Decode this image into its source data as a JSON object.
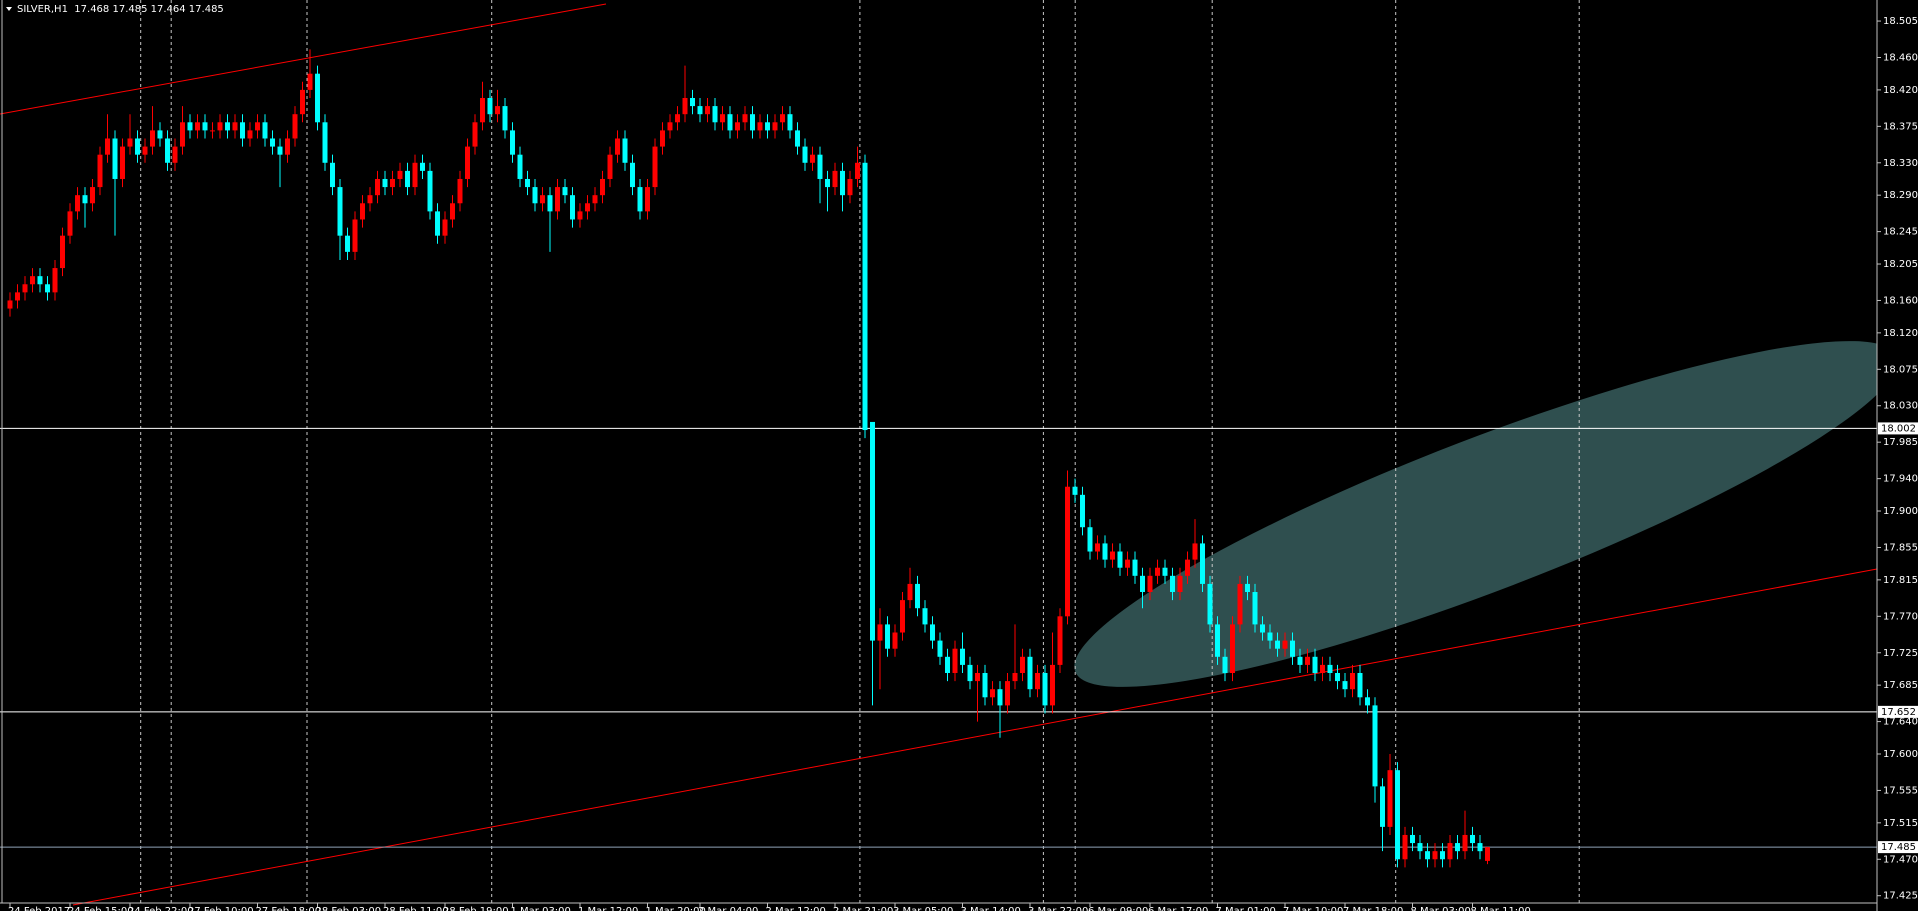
{
  "chart_data": {
    "type": "candlestick",
    "title": "SILVER,H1  17.468 17.485 17.464 17.485",
    "up_color": "#ff0000",
    "down_color": "#00ffff",
    "ylim": [
      17.416,
      18.531
    ],
    "yticks": [
      18.505,
      {
        "value": 18.46,
        "label": "18.460"
      },
      {
        "value": 18.42,
        "label": "18.420"
      },
      18.375,
      {
        "value": 18.33,
        "label": "18.330"
      },
      {
        "value": 18.29,
        "label": "18.290"
      },
      18.245,
      18.205,
      {
        "value": 18.16,
        "label": "18.160"
      },
      {
        "value": 18.12,
        "label": "18.120"
      },
      18.075,
      {
        "value": 18.03,
        "label": "18.030"
      },
      17.985,
      {
        "value": 17.94,
        "label": "17.940"
      },
      {
        "value": 17.9,
        "label": "17.900"
      },
      17.855,
      17.815,
      {
        "value": 17.77,
        "label": "17.770"
      },
      17.725,
      17.685,
      {
        "value": 17.64,
        "label": "17.640"
      },
      {
        "value": 17.6,
        "label": "17.600"
      },
      17.555,
      17.515,
      {
        "value": 17.47,
        "label": "17.470"
      },
      17.425
    ],
    "xticks": [
      {
        "value": 0,
        "label": "24 Feb 2017"
      },
      {
        "value": 8,
        "label": "24 Feb 15:00"
      },
      {
        "value": 16,
        "label": "24 Feb 22:00"
      },
      {
        "value": 24,
        "label": "27 Feb 10:00"
      },
      {
        "value": 33,
        "label": "27 Feb 18:00"
      },
      {
        "value": 41,
        "label": "28 Feb 03:00"
      },
      {
        "value": 50,
        "label": "28 Feb 11:00"
      },
      {
        "value": 58,
        "label": "28 Feb 19:00"
      },
      {
        "value": 67,
        "label": "1 Mar 03:00"
      },
      {
        "value": 76,
        "label": "1 Mar 12:00"
      },
      {
        "value": 85,
        "label": "1 Mar 20:00"
      },
      {
        "value": 92,
        "label": "2 Mar 04:00"
      },
      {
        "value": 101,
        "label": "2 Mar 12:00"
      },
      {
        "value": 110,
        "label": "2 Mar 21:00"
      },
      {
        "value": 118,
        "label": "3 Mar 05:00"
      },
      {
        "value": 127,
        "label": "3 Mar 14:00"
      },
      {
        "value": 136,
        "label": "3 Mar 22:00"
      },
      {
        "value": 144,
        "label": "6 Mar 09:00"
      },
      {
        "value": 152,
        "label": "6 Mar 17:00"
      },
      {
        "value": 161,
        "label": "7 Mar 01:00"
      },
      {
        "value": 170,
        "label": "7 Mar 10:00"
      },
      {
        "value": 178,
        "label": "7 Mar 18:00"
      },
      {
        "value": 187,
        "label": "8 Mar 03:00"
      },
      {
        "value": 195,
        "label": "8 Mar 11:00"
      }
    ],
    "hlines": [
      {
        "value": 18.002,
        "color": "#ffffff"
      },
      {
        "value": 17.652,
        "color": "#ffffff"
      },
      {
        "value": 17.485,
        "color": "#8fa3b8"
      }
    ],
    "ohlc": [
      [
        18.15,
        18.17,
        18.14,
        18.16
      ],
      [
        18.16,
        18.18,
        18.15,
        18.17
      ],
      [
        18.17,
        18.19,
        18.16,
        18.18
      ],
      [
        18.18,
        18.2,
        18.17,
        18.19
      ],
      [
        18.19,
        18.2,
        18.17,
        18.18
      ],
      [
        18.18,
        18.19,
        18.16,
        18.17
      ],
      [
        18.17,
        18.21,
        18.16,
        18.2
      ],
      [
        18.2,
        18.25,
        18.19,
        18.24
      ],
      [
        18.24,
        18.28,
        18.23,
        18.27
      ],
      [
        18.27,
        18.3,
        18.26,
        18.29
      ],
      [
        18.29,
        18.3,
        18.25,
        18.28
      ],
      [
        18.28,
        18.31,
        18.27,
        18.3
      ],
      [
        18.3,
        18.35,
        18.29,
        18.34
      ],
      [
        18.34,
        18.39,
        18.33,
        18.36
      ],
      [
        18.36,
        18.37,
        18.24,
        18.31
      ],
      [
        18.31,
        18.36,
        18.3,
        18.35
      ],
      [
        18.35,
        18.39,
        18.34,
        18.36
      ],
      [
        18.36,
        18.37,
        18.33,
        18.34
      ],
      [
        18.34,
        18.36,
        18.33,
        18.35
      ],
      [
        18.35,
        18.4,
        18.34,
        18.37
      ],
      [
        18.37,
        18.38,
        18.35,
        18.36
      ],
      [
        18.36,
        18.37,
        18.32,
        18.33
      ],
      [
        18.33,
        18.36,
        18.32,
        18.35
      ],
      [
        18.35,
        18.4,
        18.34,
        18.38
      ],
      [
        18.38,
        18.39,
        18.36,
        18.37
      ],
      [
        18.37,
        18.39,
        18.36,
        18.38
      ],
      [
        18.38,
        18.39,
        18.36,
        18.37
      ],
      [
        18.37,
        18.38,
        18.36,
        18.37
      ],
      [
        18.37,
        18.39,
        18.36,
        18.38
      ],
      [
        18.38,
        18.39,
        18.36,
        18.37
      ],
      [
        18.37,
        18.39,
        18.36,
        18.38
      ],
      [
        18.38,
        18.39,
        18.35,
        18.36
      ],
      [
        18.36,
        18.38,
        18.35,
        18.37
      ],
      [
        18.37,
        18.39,
        18.36,
        18.38
      ],
      [
        18.38,
        18.39,
        18.35,
        18.36
      ],
      [
        18.36,
        18.37,
        18.34,
        18.35
      ],
      [
        18.35,
        18.36,
        18.3,
        18.34
      ],
      [
        18.34,
        18.37,
        18.33,
        18.36
      ],
      [
        18.36,
        18.4,
        18.35,
        18.39
      ],
      [
        18.39,
        18.43,
        18.38,
        18.42
      ],
      [
        18.42,
        18.47,
        18.41,
        18.44
      ],
      [
        18.44,
        18.45,
        18.37,
        18.38
      ],
      [
        18.38,
        18.39,
        18.32,
        18.33
      ],
      [
        18.33,
        18.34,
        18.29,
        18.3
      ],
      [
        18.3,
        18.31,
        18.21,
        18.24
      ],
      [
        18.24,
        18.25,
        18.21,
        18.22
      ],
      [
        18.22,
        18.27,
        18.21,
        18.26
      ],
      [
        18.26,
        18.29,
        18.25,
        18.28
      ],
      [
        18.28,
        18.3,
        18.27,
        18.29
      ],
      [
        18.29,
        18.32,
        18.28,
        18.31
      ],
      [
        18.31,
        18.32,
        18.29,
        18.3
      ],
      [
        18.3,
        18.32,
        18.29,
        18.31
      ],
      [
        18.31,
        18.33,
        18.3,
        18.32
      ],
      [
        18.32,
        18.33,
        18.29,
        18.3
      ],
      [
        18.3,
        18.34,
        18.29,
        18.33
      ],
      [
        18.33,
        18.34,
        18.31,
        18.32
      ],
      [
        18.32,
        18.33,
        18.26,
        18.27
      ],
      [
        18.27,
        18.28,
        18.23,
        18.24
      ],
      [
        18.24,
        18.27,
        18.23,
        18.26
      ],
      [
        18.26,
        18.29,
        18.25,
        18.28
      ],
      [
        18.28,
        18.32,
        18.27,
        18.31
      ],
      [
        18.31,
        18.36,
        18.3,
        18.35
      ],
      [
        18.35,
        18.39,
        18.34,
        18.38
      ],
      [
        18.38,
        18.43,
        18.37,
        18.41
      ],
      [
        18.41,
        18.42,
        18.38,
        18.39
      ],
      [
        18.39,
        18.42,
        18.38,
        18.4
      ],
      [
        18.4,
        18.41,
        18.36,
        18.37
      ],
      [
        18.37,
        18.38,
        18.33,
        18.34
      ],
      [
        18.34,
        18.35,
        18.3,
        18.31
      ],
      [
        18.31,
        18.32,
        18.29,
        18.3
      ],
      [
        18.3,
        18.31,
        18.27,
        18.28
      ],
      [
        18.28,
        18.3,
        18.27,
        18.29
      ],
      [
        18.29,
        18.3,
        18.22,
        18.27
      ],
      [
        18.27,
        18.31,
        18.26,
        18.3
      ],
      [
        18.3,
        18.31,
        18.28,
        18.29
      ],
      [
        18.29,
        18.3,
        18.25,
        18.26
      ],
      [
        18.26,
        18.28,
        18.25,
        18.27
      ],
      [
        18.27,
        18.29,
        18.26,
        18.28
      ],
      [
        18.28,
        18.3,
        18.27,
        18.29
      ],
      [
        18.29,
        18.32,
        18.28,
        18.31
      ],
      [
        18.31,
        18.35,
        18.3,
        18.34
      ],
      [
        18.34,
        18.37,
        18.33,
        18.36
      ],
      [
        18.36,
        18.37,
        18.32,
        18.33
      ],
      [
        18.33,
        18.34,
        18.29,
        18.3
      ],
      [
        18.3,
        18.31,
        18.26,
        18.27
      ],
      [
        18.27,
        18.31,
        18.26,
        18.3
      ],
      [
        18.3,
        18.36,
        18.29,
        18.35
      ],
      [
        18.35,
        18.38,
        18.34,
        18.37
      ],
      [
        18.37,
        18.39,
        18.36,
        18.38
      ],
      [
        18.38,
        18.4,
        18.37,
        18.39
      ],
      [
        18.39,
        18.45,
        18.38,
        18.41
      ],
      [
        18.41,
        18.42,
        18.39,
        18.4
      ],
      [
        18.4,
        18.41,
        18.38,
        18.39
      ],
      [
        18.39,
        18.41,
        18.38,
        18.4
      ],
      [
        18.4,
        18.41,
        18.37,
        18.38
      ],
      [
        18.38,
        18.4,
        18.37,
        18.39
      ],
      [
        18.39,
        18.4,
        18.36,
        18.37
      ],
      [
        18.37,
        18.39,
        18.36,
        18.38
      ],
      [
        18.38,
        18.4,
        18.37,
        18.39
      ],
      [
        18.39,
        18.4,
        18.36,
        18.37
      ],
      [
        18.37,
        18.39,
        18.36,
        18.38
      ],
      [
        18.38,
        18.39,
        18.36,
        18.37
      ],
      [
        18.37,
        18.39,
        18.36,
        18.38
      ],
      [
        18.38,
        18.4,
        18.37,
        18.39
      ],
      [
        18.39,
        18.4,
        18.36,
        18.37
      ],
      [
        18.37,
        18.38,
        18.34,
        18.35
      ],
      [
        18.35,
        18.36,
        18.32,
        18.33
      ],
      [
        18.33,
        18.35,
        18.32,
        18.34
      ],
      [
        18.34,
        18.35,
        18.28,
        18.31
      ],
      [
        18.31,
        18.32,
        18.27,
        18.3
      ],
      [
        18.3,
        18.33,
        18.29,
        18.32
      ],
      [
        18.32,
        18.33,
        18.27,
        18.29
      ],
      [
        18.29,
        18.32,
        18.28,
        18.31
      ],
      [
        18.31,
        18.35,
        18.3,
        18.33
      ],
      [
        18.33,
        18.34,
        17.99,
        18.0
      ],
      [
        18.01,
        18.01,
        17.66,
        17.74
      ],
      [
        17.74,
        17.78,
        17.68,
        17.76
      ],
      [
        17.76,
        17.77,
        17.72,
        17.73
      ],
      [
        17.73,
        17.76,
        17.72,
        17.75
      ],
      [
        17.75,
        17.8,
        17.74,
        17.79
      ],
      [
        17.79,
        17.83,
        17.78,
        17.81
      ],
      [
        17.81,
        17.82,
        17.77,
        17.78
      ],
      [
        17.78,
        17.79,
        17.75,
        17.76
      ],
      [
        17.76,
        17.77,
        17.73,
        17.74
      ],
      [
        17.74,
        17.75,
        17.71,
        17.72
      ],
      [
        17.72,
        17.73,
        17.69,
        17.7
      ],
      [
        17.7,
        17.74,
        17.69,
        17.73
      ],
      [
        17.73,
        17.75,
        17.7,
        17.71
      ],
      [
        17.71,
        17.72,
        17.68,
        17.69
      ],
      [
        17.69,
        17.71,
        17.64,
        17.7
      ],
      [
        17.7,
        17.71,
        17.66,
        17.67
      ],
      [
        17.67,
        17.69,
        17.66,
        17.68
      ],
      [
        17.68,
        17.69,
        17.62,
        17.66
      ],
      [
        17.66,
        17.7,
        17.65,
        17.69
      ],
      [
        17.69,
        17.76,
        17.68,
        17.7
      ],
      [
        17.7,
        17.73,
        17.69,
        17.72
      ],
      [
        17.72,
        17.73,
        17.67,
        17.68
      ],
      [
        17.68,
        17.71,
        17.67,
        17.7
      ],
      [
        17.7,
        17.71,
        17.65,
        17.66
      ],
      [
        17.66,
        17.75,
        17.65,
        17.71
      ],
      [
        17.71,
        17.78,
        17.7,
        17.77
      ],
      [
        17.77,
        17.95,
        17.76,
        17.93
      ],
      [
        17.93,
        17.94,
        17.91,
        17.92
      ],
      [
        17.92,
        17.93,
        17.87,
        17.88
      ],
      [
        17.88,
        17.89,
        17.84,
        17.85
      ],
      [
        17.85,
        17.87,
        17.84,
        17.86
      ],
      [
        17.86,
        17.87,
        17.83,
        17.84
      ],
      [
        17.84,
        17.86,
        17.83,
        17.85
      ],
      [
        17.85,
        17.86,
        17.82,
        17.83
      ],
      [
        17.83,
        17.85,
        17.82,
        17.84
      ],
      [
        17.84,
        17.85,
        17.81,
        17.82
      ],
      [
        17.82,
        17.83,
        17.78,
        17.8
      ],
      [
        17.8,
        17.83,
        17.79,
        17.82
      ],
      [
        17.82,
        17.84,
        17.81,
        17.83
      ],
      [
        17.83,
        17.84,
        17.81,
        17.82
      ],
      [
        17.82,
        17.83,
        17.79,
        17.8
      ],
      [
        17.8,
        17.83,
        17.79,
        17.82
      ],
      [
        17.82,
        17.85,
        17.81,
        17.84
      ],
      [
        17.84,
        17.89,
        17.83,
        17.86
      ],
      [
        17.86,
        17.87,
        17.8,
        17.81
      ],
      [
        17.81,
        17.82,
        17.75,
        17.76
      ],
      [
        17.76,
        17.77,
        17.71,
        17.72
      ],
      [
        17.72,
        17.73,
        17.69,
        17.7
      ],
      [
        17.7,
        17.77,
        17.69,
        17.76
      ],
      [
        17.76,
        17.82,
        17.75,
        17.81
      ],
      [
        17.81,
        17.82,
        17.79,
        17.8
      ],
      [
        17.8,
        17.81,
        17.75,
        17.76
      ],
      [
        17.76,
        17.77,
        17.74,
        17.75
      ],
      [
        17.75,
        17.76,
        17.73,
        17.74
      ],
      [
        17.74,
        17.75,
        17.72,
        17.73
      ],
      [
        17.73,
        17.75,
        17.72,
        17.74
      ],
      [
        17.74,
        17.75,
        17.71,
        17.72
      ],
      [
        17.72,
        17.73,
        17.7,
        17.71
      ],
      [
        17.71,
        17.73,
        17.7,
        17.72
      ],
      [
        17.72,
        17.73,
        17.69,
        17.7
      ],
      [
        17.7,
        17.72,
        17.69,
        17.71
      ],
      [
        17.71,
        17.72,
        17.69,
        17.7
      ],
      [
        17.7,
        17.71,
        17.68,
        17.69
      ],
      [
        17.69,
        17.7,
        17.67,
        17.68
      ],
      [
        17.68,
        17.71,
        17.67,
        17.7
      ],
      [
        17.7,
        17.71,
        17.66,
        17.67
      ],
      [
        17.67,
        17.68,
        17.65,
        17.66
      ],
      [
        17.66,
        17.67,
        17.54,
        17.56
      ],
      [
        17.56,
        17.57,
        17.48,
        17.51
      ],
      [
        17.51,
        17.6,
        17.5,
        17.58
      ],
      [
        17.58,
        17.59,
        17.46,
        17.47
      ],
      [
        17.47,
        17.51,
        17.46,
        17.5
      ],
      [
        17.5,
        17.51,
        17.48,
        17.49
      ],
      [
        17.49,
        17.5,
        17.47,
        17.48
      ],
      [
        17.48,
        17.49,
        17.46,
        17.47
      ],
      [
        17.47,
        17.49,
        17.46,
        17.48
      ],
      [
        17.48,
        17.49,
        17.46,
        17.47
      ],
      [
        17.47,
        17.5,
        17.46,
        17.49
      ],
      [
        17.49,
        17.5,
        17.47,
        17.48
      ],
      [
        17.48,
        17.53,
        17.47,
        17.5
      ],
      [
        17.5,
        17.51,
        17.48,
        17.49
      ],
      [
        17.49,
        17.5,
        17.47,
        17.48
      ],
      [
        17.468,
        17.485,
        17.464,
        17.485
      ]
    ]
  }
}
